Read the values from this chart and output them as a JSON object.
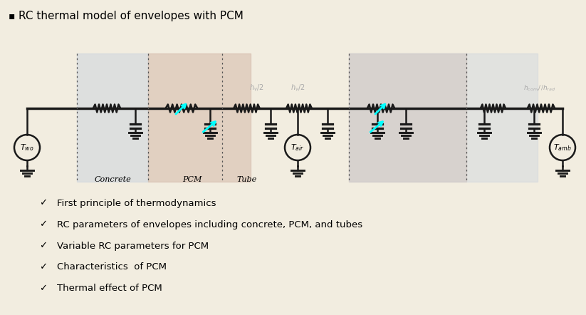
{
  "bg_color": "#f2ede0",
  "title": "RC thermal model of envelopes with PCM",
  "checkmarks": [
    "First principle of thermodynamics",
    "RC parameters of envelopes including concrete, PCM, and tubes",
    "Variable RC parameters for PCM",
    "Characteristics  of PCM",
    "Thermal effect of PCM"
  ],
  "concrete_bg": "#cdd5de",
  "pcm_bg": "#d4b9a8",
  "outer_bg": "#cdd5de",
  "concrete_label": "Concrete",
  "pcm_label": "PCM",
  "tube_label": "Tube",
  "line_color": "#1a1a1a",
  "divider_color": "#555555",
  "label_color": "#aaaaaa"
}
